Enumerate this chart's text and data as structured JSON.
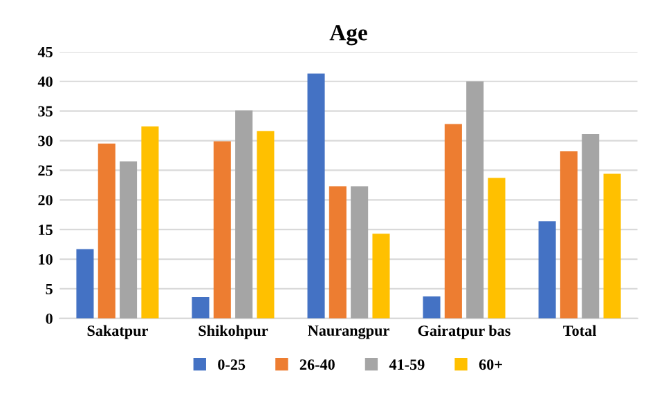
{
  "chart_data": {
    "type": "bar",
    "title": "Age",
    "categories": [
      "Sakatpur",
      "Shikohpur",
      "Naurangpur",
      "Gairatpur bas",
      "Total"
    ],
    "series": [
      {
        "name": "0-25",
        "color": "#4472c4",
        "values": [
          11.7,
          3.6,
          41.3,
          3.7,
          16.4
        ]
      },
      {
        "name": "26-40",
        "color": "#ed7d31",
        "values": [
          29.5,
          29.9,
          22.3,
          32.8,
          28.2
        ]
      },
      {
        "name": "41-59",
        "color": "#a5a5a5",
        "values": [
          26.5,
          35.1,
          22.3,
          40.0,
          31.1
        ]
      },
      {
        "name": "60+",
        "color": "#ffc000",
        "values": [
          32.4,
          31.6,
          14.3,
          23.7,
          24.4
        ]
      }
    ],
    "ylim": [
      0,
      45
    ],
    "yticks": [
      0,
      5,
      10,
      15,
      20,
      25,
      30,
      35,
      40,
      45
    ],
    "grid": "y",
    "legend": "bottom"
  }
}
